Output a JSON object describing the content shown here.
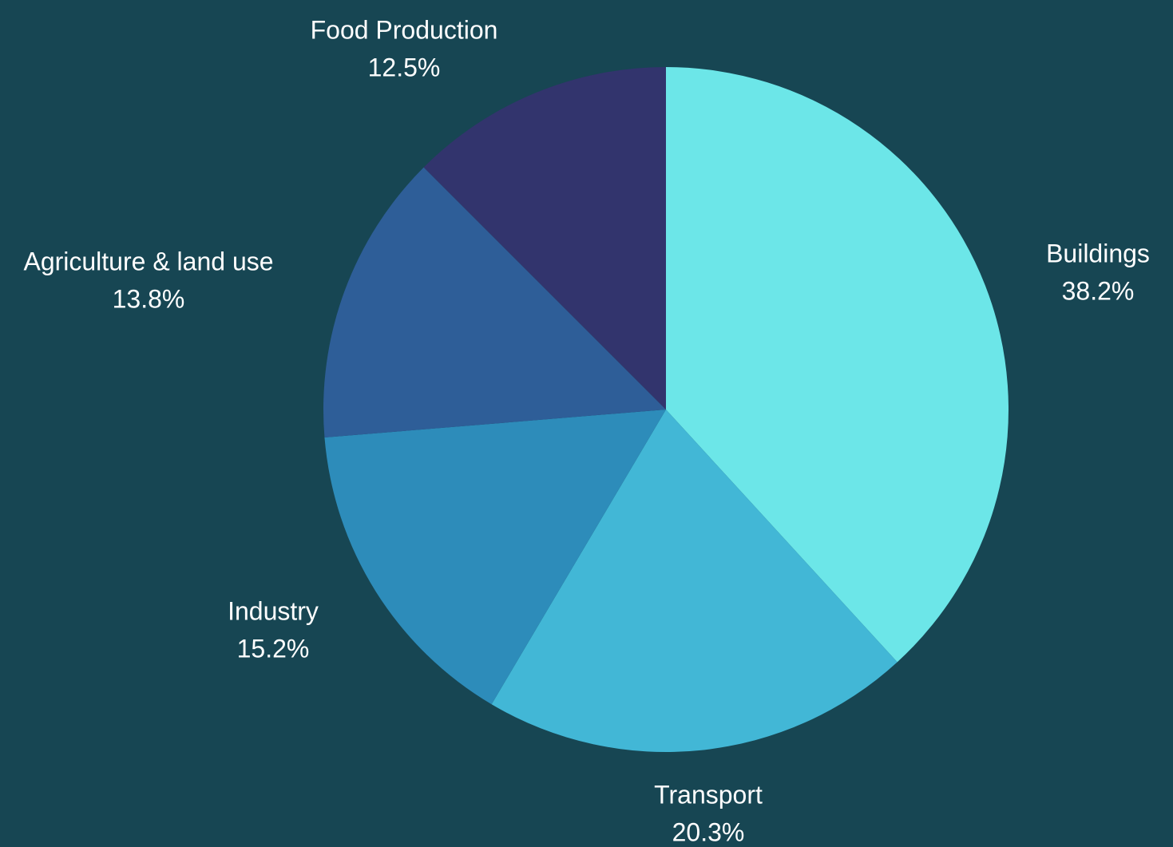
{
  "colors": {
    "background": "#174653",
    "label": "#ffffff"
  },
  "chart_data": {
    "type": "pie",
    "title": "",
    "start_angle_deg": 0,
    "direction": "clockwise",
    "legend": "none",
    "slices": [
      {
        "label": "Buildings",
        "value": 38.2,
        "value_label": "38.2%",
        "color": "#6ce6e8"
      },
      {
        "label": "Transport",
        "value": 20.3,
        "value_label": "20.3%",
        "color": "#42b7d6"
      },
      {
        "label": "Industry",
        "value": 15.2,
        "value_label": "15.2%",
        "color": "#2d8cba"
      },
      {
        "label": "Agriculture & land use",
        "value": 13.8,
        "value_label": "13.8%",
        "color": "#2e5e98"
      },
      {
        "label": "Food Production",
        "value": 12.5,
        "value_label": "12.5%",
        "color": "#32346d"
      }
    ]
  }
}
